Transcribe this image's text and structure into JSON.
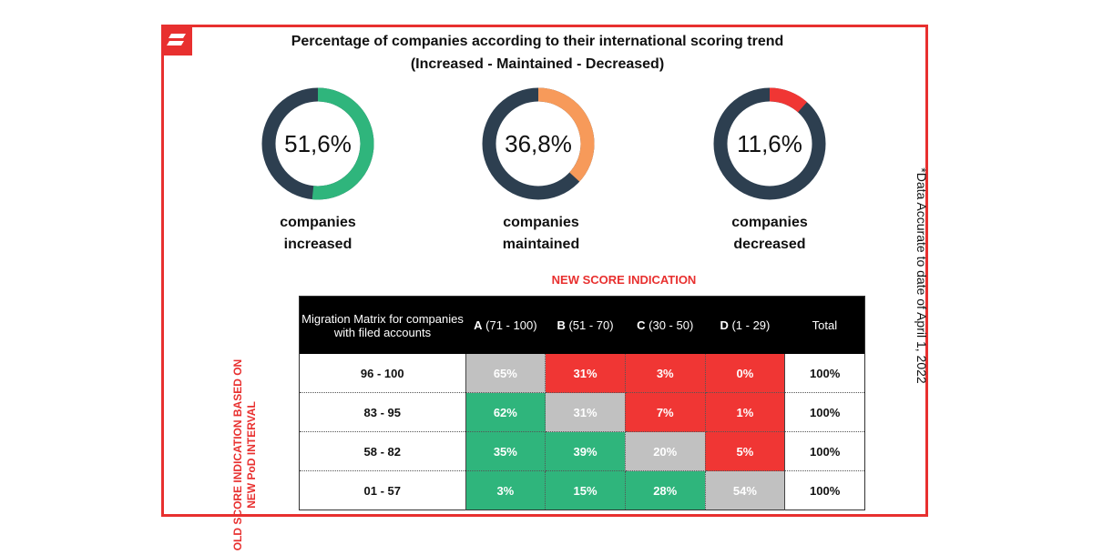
{
  "title_line1": "Percentage of companies according to their international scoring trend",
  "title_line2": "(Increased - Maintained - Decreased)",
  "colors": {
    "frame": "#e8302f",
    "donut_track": "#2d3f50",
    "increased": "#2fb57c",
    "maintained": "#f79a5a",
    "decreased": "#f03634",
    "cell_green": "#2fb57c",
    "cell_red": "#f03634",
    "cell_grey": "#c1c1c1"
  },
  "chart_data": [
    {
      "type": "pie",
      "variant": "donut",
      "slices": [
        {
          "label": "companies increased",
          "value": 51.6,
          "display": "51,6%",
          "color": "#2fb57c"
        },
        {
          "label": "companies maintained",
          "value": 36.8,
          "display": "36,8%",
          "color": "#f79a5a"
        },
        {
          "label": "companies decreased",
          "value": 11.6,
          "display": "11,6%",
          "color": "#f03634"
        }
      ]
    },
    {
      "type": "table",
      "column_axis_label": "NEW SCORE INDICATION",
      "row_axis_label": "OLD SCORE INDICATION BASED ON NEW PoD INTERVAL",
      "corner_label": "Migration Matrix for companies with filed accounts",
      "columns": [
        {
          "letter": "A",
          "range": " (71 - 100)"
        },
        {
          "letter": "B",
          "range": " (51 - 70)"
        },
        {
          "letter": "C",
          "range": " (30 - 50)"
        },
        {
          "letter": "D",
          "range": " (1 - 29)"
        }
      ],
      "total_label": "Total",
      "rows": [
        {
          "label": "96 - 100",
          "cells": [
            {
              "v": "65%",
              "c": "grey"
            },
            {
              "v": "31%",
              "c": "red"
            },
            {
              "v": "3%",
              "c": "red"
            },
            {
              "v": "0%",
              "c": "red"
            }
          ],
          "total": "100%"
        },
        {
          "label": "83 - 95",
          "cells": [
            {
              "v": "62%",
              "c": "green"
            },
            {
              "v": "31%",
              "c": "grey"
            },
            {
              "v": "7%",
              "c": "red"
            },
            {
              "v": "1%",
              "c": "red"
            }
          ],
          "total": "100%"
        },
        {
          "label": "58 - 82",
          "cells": [
            {
              "v": "35%",
              "c": "green"
            },
            {
              "v": "39%",
              "c": "green"
            },
            {
              "v": "20%",
              "c": "grey"
            },
            {
              "v": "5%",
              "c": "red"
            }
          ],
          "total": "100%"
        },
        {
          "label": "01 - 57",
          "cells": [
            {
              "v": "3%",
              "c": "green"
            },
            {
              "v": "15%",
              "c": "green"
            },
            {
              "v": "28%",
              "c": "green"
            },
            {
              "v": "54%",
              "c": "grey"
            }
          ],
          "total": "100%"
        }
      ]
    }
  ],
  "captions": [
    {
      "line1": "companies",
      "line2": "increased"
    },
    {
      "line1": "companies",
      "line2": "maintained"
    },
    {
      "line1": "companies",
      "line2": "decreased"
    }
  ],
  "side_note": "*Data Accurate to date of April 1, 2022",
  "icons": {
    "logo": "brand-slash-logo-icon"
  }
}
